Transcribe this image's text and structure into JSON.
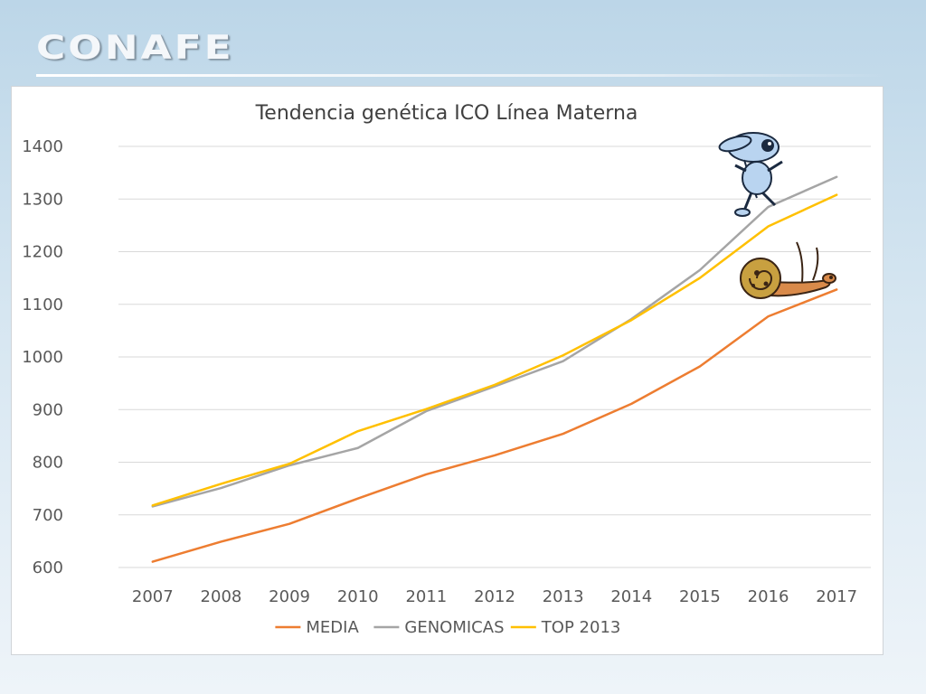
{
  "header": {
    "logo_text": "CONAFE"
  },
  "chart_data": {
    "type": "line",
    "title": "Tendencia genética ICO Línea Materna",
    "xlabel": "",
    "ylabel": "",
    "categories": [
      "2007",
      "2008",
      "2009",
      "2010",
      "2011",
      "2012",
      "2013",
      "2014",
      "2015",
      "2016",
      "2017"
    ],
    "ylim": [
      600,
      1400
    ],
    "yticks": [
      600,
      700,
      800,
      900,
      1000,
      1100,
      1200,
      1300,
      1400
    ],
    "grid": true,
    "legend_position": "bottom",
    "series": [
      {
        "name": "MEDIA",
        "color": "#ED7D31",
        "values": [
          611,
          649,
          683,
          731,
          777,
          813,
          854,
          911,
          982,
          1077,
          1128
        ]
      },
      {
        "name": "GENOMICAS",
        "color": "#A5A5A5",
        "values": [
          716,
          751,
          794,
          827,
          897,
          944,
          992,
          1072,
          1165,
          1285,
          1342
        ]
      },
      {
        "name": "TOP 2013",
        "color": "#FFC000",
        "values": [
          718,
          759,
          797,
          859,
          901,
          947,
          1003,
          1070,
          1150,
          1248,
          1308
        ]
      }
    ],
    "decorations": [
      "blue-runner-cartoon-icon",
      "snail-cartoon-icon"
    ]
  }
}
